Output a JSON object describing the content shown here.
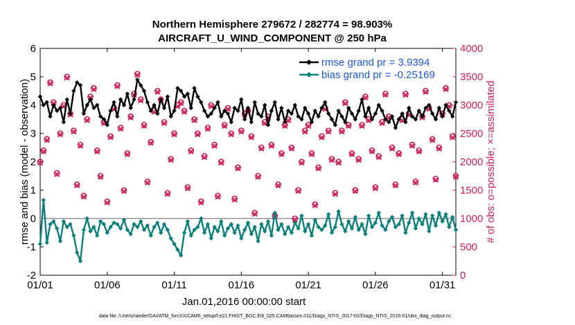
{
  "chart_data": {
    "type": "line",
    "title_line1": "Northern Hemisphere 279672 / 282774 = 98.903%",
    "title_line2": "AIRCRAFT_U_WIND_COMPONENT @ 250 hPa",
    "xlabel": "Jan.01,2016 00:00:00 start",
    "ylabel_left": "rmse and bias (model - observation)",
    "ylabel_right": "# of obs: o=possible; ×=assimilated",
    "xlim": [
      1,
      32
    ],
    "ylim_left": [
      -2,
      6
    ],
    "ylim_right": [
      0,
      4000
    ],
    "x_ticks": [
      1,
      6,
      11,
      16,
      21,
      26,
      31
    ],
    "x_tick_labels": [
      "01/01",
      "01/06",
      "01/11",
      "01/16",
      "01/21",
      "01/26",
      "01/31"
    ],
    "y_ticks_left": [
      -2,
      -1,
      0,
      1,
      2,
      3,
      4,
      5,
      6
    ],
    "y_ticks_right": [
      0,
      500,
      1000,
      1500,
      2000,
      2500,
      3000,
      3500,
      4000
    ],
    "zero_line": 0,
    "legend": {
      "position": "top-right",
      "rmse_label": "rmse grand pr = 3.9394",
      "bias_label": "bias grand pr = -0.25169"
    },
    "colors": {
      "rmse": "#000000",
      "bias": "#0a7f7a",
      "counts": "#cc1f5a",
      "zero_line": "#b0b0b0",
      "legend_text": "#1a56db"
    },
    "time_step_days": 0.25,
    "series": [
      {
        "name": "rmse",
        "axis": "left",
        "values": [
          4.3,
          4.0,
          4.1,
          3.6,
          4.0,
          3.8,
          3.9,
          3.4,
          4.2,
          3.7,
          4.5,
          4.8,
          4.7,
          3.7,
          4.0,
          4.2,
          3.9,
          4.0,
          3.6,
          3.5,
          3.3,
          3.8,
          4.1,
          3.6,
          4.2,
          4.0,
          4.4,
          3.9,
          4.2,
          4.9,
          4.7,
          4.5,
          4.1,
          3.8,
          4.0,
          3.7,
          4.2,
          3.9,
          4.3,
          3.6,
          3.8,
          4.6,
          4.5,
          4.3,
          4.4,
          3.9,
          4.6,
          4.3,
          4.1,
          3.8,
          3.6,
          3.7,
          3.9,
          4.1,
          3.6,
          3.8,
          3.7,
          3.4,
          3.9,
          3.8,
          4.2,
          3.5,
          3.9,
          3.4,
          4.1,
          3.7,
          3.6,
          4.0,
          3.3,
          3.8,
          4.1,
          3.5,
          3.9,
          3.4,
          3.8,
          3.7,
          4.0,
          3.6,
          3.5,
          3.9,
          3.7,
          3.4,
          3.8,
          3.6,
          3.9,
          4.1,
          3.7,
          3.5,
          3.3,
          3.8,
          3.6,
          3.4,
          3.9,
          3.7,
          3.5,
          3.8,
          4.2,
          3.6,
          3.9,
          3.5,
          3.7,
          4.0,
          3.8,
          3.5,
          3.4,
          3.6,
          3.2,
          3.5,
          3.7,
          3.4,
          3.9,
          3.6,
          3.5,
          3.8,
          3.6,
          3.9,
          4.0,
          3.7,
          3.5,
          3.9,
          3.6,
          4.0,
          3.8,
          3.6,
          4.1,
          3.7,
          4.3,
          3.9,
          3.6,
          3.8,
          4.1,
          3.7,
          4.5,
          3.9,
          4.3,
          4.1,
          3.8,
          4.0,
          4.1,
          4.3,
          3.9,
          4.6,
          4.2,
          4.7,
          4.3,
          4.6,
          4.8,
          4.0,
          3.7
        ]
      },
      {
        "name": "bias",
        "axis": "left",
        "values": [
          -0.9,
          0.65,
          -0.85,
          -0.2,
          -0.1,
          -0.35,
          -0.8,
          -0.1,
          -0.3,
          -0.2,
          -0.6,
          -1.2,
          -1.5,
          -0.4,
          0.0,
          -0.45,
          -0.3,
          -0.6,
          -0.1,
          -0.2,
          -0.5,
          -0.3,
          -0.15,
          -0.2,
          -0.35,
          -0.05,
          -0.4,
          -0.55,
          -0.2,
          -0.3,
          -0.1,
          -0.4,
          -0.25,
          -0.6,
          -0.3,
          -0.15,
          -0.5,
          -0.2,
          -0.4,
          -0.7,
          -0.9,
          -1.1,
          -1.3,
          -0.5,
          -0.1,
          -0.6,
          -0.4,
          -0.3,
          0.0,
          -0.5,
          -0.2,
          -0.7,
          -0.3,
          -0.45,
          -0.1,
          -0.6,
          -0.35,
          -0.2,
          -0.5,
          -0.25,
          -0.7,
          -0.4,
          -0.15,
          -0.55,
          -0.3,
          -0.8,
          -0.2,
          -0.45,
          -0.1,
          -0.6,
          0.2,
          -0.4,
          -0.2,
          -0.55,
          -0.3,
          -0.5,
          -0.15,
          -0.35,
          0.1,
          -0.45,
          -0.2,
          -0.6,
          -0.05,
          -0.3,
          -0.4,
          -0.25,
          0.15,
          -0.5,
          -0.3,
          0.25,
          -0.2,
          -0.45,
          -0.1,
          -0.35,
          0.05,
          -0.4,
          -0.2,
          -0.55,
          0.1,
          -0.3,
          -0.15,
          0.2,
          -0.25,
          -0.4,
          -0.1,
          0.05,
          -0.3,
          -0.2,
          0.1,
          -0.5,
          -0.15,
          0.2,
          -0.35,
          0.0,
          -0.2,
          0.15,
          -0.45,
          0.1,
          -0.25,
          0.2,
          -0.1,
          0.15,
          -0.3,
          0.05,
          -0.4,
          0.1,
          -0.2,
          0.0,
          -0.35,
          0.2,
          -0.3,
          -0.1,
          0.1,
          -0.45,
          -0.2,
          -0.05,
          -0.8,
          -0.35,
          0.1,
          -0.2,
          -0.4,
          0.0,
          -0.2,
          -0.6,
          -0.1,
          -0.2,
          -0.7
        ]
      },
      {
        "name": "obs_possible",
        "axis": "right",
        "marker": "circle",
        "values": [
          2000,
          2200,
          2400,
          3400,
          3050,
          1800,
          2500,
          3000,
          3500,
          2850,
          2550,
          1600,
          2300,
          1400,
          2750,
          3150,
          3300,
          2200,
          1750,
          2700,
          1300,
          2450,
          2950,
          3350,
          2600,
          1500,
          2150,
          2800,
          3200,
          3550,
          3100,
          2650,
          1650,
          2350,
          2900,
          3250,
          3100,
          2700,
          1450,
          2050,
          2500,
          3000,
          3050,
          2900,
          1550,
          2200,
          2750,
          2500,
          1300,
          2100,
          2600,
          3000,
          2300,
          1400,
          2000,
          2650,
          2950,
          2500,
          1350,
          1900,
          2550,
          2850,
          2900,
          2450,
          1100,
          1750,
          2250,
          2700,
          2800,
          2300,
          1050,
          1600,
          2150,
          2650,
          2750,
          2250,
          1000,
          1500,
          2000,
          2550,
          2650,
          2150,
          1250,
          1900,
          2450,
          2950,
          2550,
          2050,
          1450,
          2000,
          2550,
          3050,
          2650,
          2150,
          1500,
          2050,
          2650,
          3150,
          2750,
          2200,
          1550,
          2100,
          2700,
          3200,
          2800,
          2250,
          1600,
          2150,
          2750,
          3200,
          2850,
          2300,
          1650,
          2200,
          2800,
          3250,
          2950,
          2400,
          1700,
          2250,
          2850,
          3300,
          3000,
          2450,
          1750,
          2300,
          2900,
          3350,
          3050,
          2500,
          1800,
          2350,
          2950,
          3400,
          3100,
          2550,
          1850,
          2400,
          3000,
          3450,
          3150,
          2600,
          1400,
          2050,
          3200,
          3100,
          2800
        ]
      },
      {
        "name": "obs_assimilated",
        "axis": "right",
        "marker": "x",
        "values": [
          1980,
          2180,
          2380,
          3380,
          3030,
          1780,
          2480,
          2980,
          3480,
          2830,
          2530,
          1580,
          2280,
          1380,
          2730,
          3130,
          3280,
          2180,
          1730,
          2680,
          1280,
          2430,
          2930,
          3330,
          2580,
          1480,
          2130,
          2780,
          3180,
          3530,
          3080,
          2630,
          1630,
          2330,
          2880,
          3230,
          3080,
          2680,
          1430,
          2030,
          2480,
          2980,
          3030,
          2880,
          1530,
          2180,
          2730,
          2480,
          1280,
          2080,
          2580,
          2980,
          2280,
          1380,
          1980,
          2630,
          2930,
          2480,
          1330,
          1880,
          2530,
          2830,
          2880,
          2430,
          1080,
          1730,
          2230,
          2680,
          2780,
          2280,
          1030,
          1580,
          2130,
          2630,
          2730,
          2230,
          980,
          1480,
          1980,
          2530,
          2630,
          2130,
          1230,
          1880,
          2430,
          2930,
          2530,
          2030,
          1430,
          1980,
          2530,
          3030,
          2630,
          2130,
          1480,
          2030,
          2630,
          3130,
          2730,
          2180,
          1530,
          2080,
          2680,
          3180,
          2780,
          2230,
          1580,
          2130,
          2730,
          3180,
          2830,
          2280,
          1630,
          2180,
          2780,
          3230,
          2930,
          2380,
          1680,
          2230,
          2830,
          3280,
          2980,
          2430,
          1730,
          2280,
          2880,
          3330,
          3030,
          2480,
          1780,
          2330,
          2930,
          3380,
          3080,
          2530,
          1830,
          2380,
          2980,
          3430,
          3130,
          2580,
          1380,
          2030,
          3180,
          3080,
          2780
        ]
      }
    ]
  },
  "footer": {
    "data_file": "data file: /Users/raeder/DAI/ATM_forcXX/CAM6_setup/f.e21.FHIST_BGC.f09_025.CAM6assim.011/Diags_NTrS_2017-02/Diags_NTrS_2016-01/obs_diag_output.nc"
  }
}
